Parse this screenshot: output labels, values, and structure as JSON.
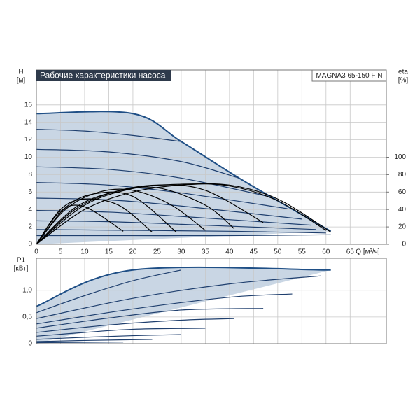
{
  "chart_data": [
    {
      "type": "line",
      "title": "Рабочие характеристики насоса",
      "model": "MAGNA3 65-150 F N",
      "xlabel": "Q [м³/ч]",
      "ylabel": "H",
      "yunit": "[м]",
      "y2label": "eta",
      "y2unit": "[%]",
      "xlim": [
        0,
        72.5
      ],
      "xticks": [
        0,
        5,
        10,
        15,
        20,
        25,
        30,
        35,
        40,
        45,
        50,
        55,
        60,
        65
      ],
      "ylim": [
        0,
        20
      ],
      "yticks": [
        0,
        2,
        4,
        6,
        8,
        10,
        12,
        14,
        16
      ],
      "y2lim": [
        0,
        200
      ],
      "y2ticks": [
        0,
        20,
        40,
        60,
        80,
        100
      ],
      "grid": true,
      "area_color": "#c9d6e4",
      "series": [
        {
          "color": "#1f4f86",
          "x": [
            0,
            20,
            30,
            42,
            55,
            61
          ],
          "values": [
            15,
            15,
            11.8,
            7.6,
            3.4,
            1.5
          ]
        },
        {
          "color": "#1f3f6e",
          "x": [
            0,
            10,
            20,
            30
          ],
          "values": [
            13.2,
            13.0,
            12.5,
            11.8
          ]
        },
        {
          "color": "#1f3f6e",
          "x": [
            0,
            15,
            30,
            42
          ],
          "values": [
            10.9,
            10.6,
            9.5,
            7.6
          ]
        },
        {
          "color": "#1f3f6e",
          "x": [
            0,
            15,
            30,
            48
          ],
          "values": [
            8.9,
            8.6,
            7.6,
            5.5
          ]
        },
        {
          "color": "#1f3f6e",
          "x": [
            0,
            15,
            30,
            52
          ],
          "values": [
            7.1,
            6.8,
            5.9,
            4.1
          ]
        },
        {
          "color": "#1f3f6e",
          "x": [
            0,
            15,
            30,
            55
          ],
          "values": [
            5.3,
            5.1,
            4.4,
            2.9
          ]
        },
        {
          "color": "#1f3f6e",
          "x": [
            0,
            15,
            30,
            57
          ],
          "values": [
            3.9,
            3.7,
            3.2,
            2.2
          ]
        },
        {
          "color": "#1f3f6e",
          "x": [
            0,
            15,
            30,
            58
          ],
          "values": [
            2.7,
            2.6,
            2.3,
            1.7
          ]
        },
        {
          "color": "#1f3f6e",
          "x": [
            0,
            20,
            40,
            60
          ],
          "values": [
            1.7,
            1.6,
            1.5,
            1.3
          ]
        },
        {
          "color": "#1f3f6e",
          "x": [
            0,
            20,
            40,
            61
          ],
          "values": [
            1.0,
            1.0,
            1.0,
            1.1
          ]
        },
        {
          "color": "#000000",
          "axis": "y2",
          "x": [
            0,
            10,
            20,
            30,
            40,
            50,
            61
          ],
          "values": [
            0,
            40,
            60,
            68,
            68,
            52,
            14
          ]
        },
        {
          "color": "#000000",
          "axis": "y2",
          "x": [
            0,
            10,
            20,
            30,
            40,
            50,
            60
          ],
          "values": [
            0,
            45,
            64,
            69,
            67,
            50,
            16
          ]
        },
        {
          "color": "#000000",
          "axis": "y2",
          "x": [
            0,
            8,
            16,
            25,
            35,
            47
          ],
          "values": [
            0,
            40,
            60,
            68,
            62,
            25
          ]
        },
        {
          "color": "#000000",
          "axis": "y2",
          "x": [
            0,
            8,
            16,
            25,
            35,
            41
          ],
          "values": [
            0,
            42,
            60,
            65,
            45,
            18
          ]
        },
        {
          "color": "#000000",
          "axis": "y2",
          "x": [
            0,
            6,
            13,
            20,
            28,
            35
          ],
          "values": [
            0,
            40,
            60,
            62,
            45,
            16
          ]
        },
        {
          "color": "#000000",
          "axis": "y2",
          "x": [
            0,
            6,
            12,
            20,
            29
          ],
          "values": [
            0,
            42,
            58,
            55,
            14
          ]
        },
        {
          "color": "#000000",
          "axis": "y2",
          "x": [
            0,
            5,
            10,
            17,
            24
          ],
          "values": [
            0,
            40,
            52,
            45,
            14
          ]
        },
        {
          "color": "#000000",
          "axis": "y2",
          "x": [
            0,
            5,
            10,
            18
          ],
          "values": [
            0,
            38,
            43,
            15
          ]
        }
      ]
    },
    {
      "type": "line",
      "ylabel": "P1",
      "yunit": "[кВт]",
      "xlim": [
        0,
        72.5
      ],
      "xticks": [
        0,
        5,
        10,
        15,
        20,
        25,
        30,
        35,
        40,
        45,
        50,
        55,
        60,
        65
      ],
      "ylim": [
        0,
        1.6
      ],
      "yticks": [
        0,
        {
          "value": 0.5,
          "label": "0,5"
        },
        {
          "value": 1.0,
          "label": "1,0"
        }
      ],
      "grid": true,
      "area_color": "#c9d6e4",
      "series": [
        {
          "color": "#1f4f86",
          "x": [
            0,
            20,
            61
          ],
          "values": [
            0.7,
            1.38,
            1.38
          ]
        },
        {
          "color": "#1f3f6e",
          "x": [
            0,
            10,
            20,
            30
          ],
          "values": [
            0.58,
            0.9,
            1.18,
            1.38
          ]
        },
        {
          "color": "#1f3f6e",
          "x": [
            0,
            20,
            40,
            59
          ],
          "values": [
            0.47,
            0.85,
            1.12,
            1.27
          ]
        },
        {
          "color": "#1f3f6e",
          "x": [
            0,
            20,
            40,
            53
          ],
          "values": [
            0.37,
            0.65,
            0.87,
            0.93
          ]
        },
        {
          "color": "#1f3f6e",
          "x": [
            0,
            15,
            30,
            47
          ],
          "values": [
            0.29,
            0.48,
            0.63,
            0.66
          ]
        },
        {
          "color": "#1f3f6e",
          "x": [
            0,
            15,
            30,
            41
          ],
          "values": [
            0.21,
            0.35,
            0.44,
            0.47
          ]
        },
        {
          "color": "#1f3f6e",
          "x": [
            0,
            10,
            20,
            35
          ],
          "values": [
            0.14,
            0.21,
            0.27,
            0.29
          ]
        },
        {
          "color": "#1f3f6e",
          "x": [
            0,
            10,
            20,
            30
          ],
          "values": [
            0.08,
            0.12,
            0.15,
            0.17
          ]
        },
        {
          "color": "#1f3f6e",
          "x": [
            0,
            10,
            24
          ],
          "values": [
            0.04,
            0.06,
            0.08
          ]
        },
        {
          "color": "#1f3f6e",
          "x": [
            0,
            18
          ],
          "values": [
            0.02,
            0.03
          ]
        }
      ]
    }
  ]
}
